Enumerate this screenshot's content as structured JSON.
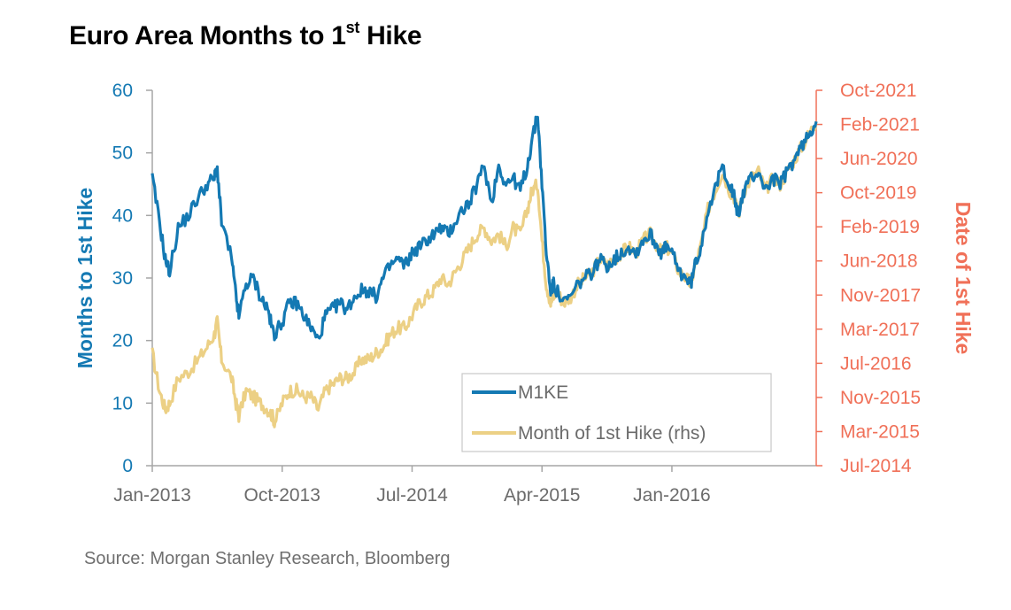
{
  "title_main": "Euro Area Months to 1",
  "title_sup": "st",
  "title_end": " Hike",
  "source": "Source: Morgan Stanley Research, Bloomberg",
  "colors": {
    "blue": "#1479b3",
    "gold": "#ecd085",
    "right_axis": "#f07058",
    "axis": "#a6a6a6",
    "tick_text": "#6b6b6b"
  },
  "chart_data": {
    "type": "line",
    "title": "Euro Area Months to 1st Hike",
    "ylabel": "Months to 1st Hike",
    "ylabel_right": "Date of 1st Hike",
    "ylim": [
      0,
      60
    ],
    "yticks": [
      "0",
      "10",
      "20",
      "30",
      "40",
      "50",
      "60"
    ],
    "yticks_right": [
      "Jul-2014",
      "Mar-2015",
      "Nov-2015",
      "Jul-2016",
      "Mar-2017",
      "Nov-2017",
      "Jun-2018",
      "Feb-2019",
      "Oct-2019",
      "Jun-2020",
      "Feb-2021",
      "Oct-2021"
    ],
    "x_categories": [
      "Jan-2013",
      "Oct-2013",
      "Jul-2014",
      "Apr-2015",
      "Jan-2016"
    ],
    "x_range_months": [
      0,
      46
    ],
    "x_tick_positions_months": [
      0,
      9,
      18,
      27,
      36
    ],
    "legend": [
      "M1KE",
      "Month of 1st Hike (rhs)"
    ],
    "series": [
      {
        "name": "M1KE",
        "x": [
          0,
          0.5,
          0.9,
          1.2,
          1.8,
          2.5,
          3.2,
          3.8,
          4.3,
          4.5,
          4.8,
          5.5,
          5.8,
          6.0,
          6.5,
          7.0,
          7.5,
          8.0,
          8.3,
          8.5,
          9.0,
          9.5,
          10.0,
          10.5,
          11.0,
          11.5,
          12.0,
          12.5,
          13.0,
          13.5,
          14.0,
          14.5,
          15.0,
          15.5,
          16.0,
          16.5,
          17.0,
          17.5,
          18.0,
          18.5,
          19.0,
          19.5,
          20.0,
          20.5,
          21.0,
          21.5,
          22.0,
          22.5,
          23.0,
          23.5,
          24.0,
          24.5,
          25.0,
          25.5,
          26.0,
          26.3,
          26.7,
          27.0,
          27.3,
          27.6,
          27.8,
          28.0,
          28.5,
          29.0,
          29.5,
          30.0,
          30.5,
          31.0,
          31.5,
          32.0,
          32.5,
          33.0,
          33.5,
          34.0,
          34.5,
          35.0,
          35.3,
          35.6,
          36.0,
          36.5,
          37.0,
          37.3,
          37.6,
          38.0,
          38.5,
          39.0,
          39.5,
          40.0,
          40.3,
          40.6,
          41.0,
          41.5,
          42.0,
          42.5,
          43.0,
          43.5,
          44.0,
          44.5,
          45.0,
          45.5,
          46.0
        ],
        "values": [
          46,
          39,
          33,
          31,
          38,
          40,
          43,
          45,
          46,
          47.5,
          39,
          33,
          27,
          24,
          29,
          30,
          27,
          25,
          22,
          21,
          23,
          26,
          26,
          24,
          22,
          20,
          24,
          25,
          26,
          25,
          27,
          28,
          28,
          27,
          30,
          32,
          33,
          32,
          34,
          35,
          36,
          37,
          38,
          37,
          39,
          41,
          42,
          45,
          48,
          42,
          48,
          45,
          46,
          44,
          48,
          52,
          56,
          45,
          34,
          28,
          29,
          28,
          26,
          27,
          29,
          30,
          31,
          33,
          32,
          33,
          34,
          35,
          34,
          36,
          37,
          35,
          34,
          35,
          34,
          31,
          30,
          29,
          32,
          35,
          41,
          44,
          48,
          45,
          43,
          40,
          44,
          46,
          47,
          44,
          46,
          45,
          47,
          49,
          51,
          53,
          55
        ]
      },
      {
        "name": "Month of 1st Hike (rhs)",
        "x": [
          0,
          0.5,
          0.9,
          1.2,
          1.8,
          2.5,
          3.2,
          3.8,
          4.3,
          4.5,
          4.8,
          5.5,
          5.8,
          6.0,
          6.5,
          7.0,
          7.5,
          8.0,
          8.3,
          8.5,
          9.0,
          9.5,
          10.0,
          10.5,
          11.0,
          11.5,
          12.0,
          12.5,
          13.0,
          13.5,
          14.0,
          14.5,
          15.0,
          15.5,
          16.0,
          16.5,
          17.0,
          17.5,
          18.0,
          18.5,
          19.0,
          19.5,
          20.0,
          20.5,
          21.0,
          21.5,
          22.0,
          22.5,
          23.0,
          23.5,
          24.0,
          24.5,
          25.0,
          25.5,
          26.0,
          26.3,
          26.7,
          27.0,
          27.3,
          27.6,
          27.8,
          28.0,
          28.5,
          29.0,
          29.5,
          30.0,
          30.5,
          31.0,
          31.5,
          32.0,
          32.5,
          33.0,
          33.5,
          34.0,
          34.5,
          35.0,
          35.3,
          35.6,
          36.0,
          36.5,
          37.0,
          37.3,
          37.6,
          38.0,
          38.5,
          39.0,
          39.5,
          40.0,
          40.3,
          40.6,
          41.0,
          41.5,
          42.0,
          42.5,
          43.0,
          43.5,
          44.0,
          44.5,
          45.0,
          45.5,
          46.0
        ],
        "values": [
          18,
          12,
          9,
          10,
          14,
          15,
          17,
          19,
          21,
          23,
          17,
          14,
          10,
          8,
          12,
          11,
          10,
          9,
          8,
          7,
          10,
          12,
          12,
          11,
          11,
          9,
          12,
          13,
          14,
          14,
          15,
          17,
          17,
          18,
          19,
          21,
          22,
          22,
          24,
          26,
          27,
          28,
          30,
          29,
          31,
          33,
          35,
          37,
          38,
          36,
          37,
          35,
          38,
          37,
          41,
          44,
          45,
          36,
          29,
          26,
          27,
          28,
          26,
          27,
          29,
          30,
          31,
          33,
          32,
          33,
          34,
          35,
          34,
          36,
          37,
          35,
          34,
          35,
          34,
          31,
          30,
          29,
          32,
          35,
          41,
          44,
          47,
          44,
          43,
          40,
          44,
          46,
          47,
          44,
          46,
          45,
          47,
          49,
          51,
          53,
          55
        ]
      }
    ]
  }
}
